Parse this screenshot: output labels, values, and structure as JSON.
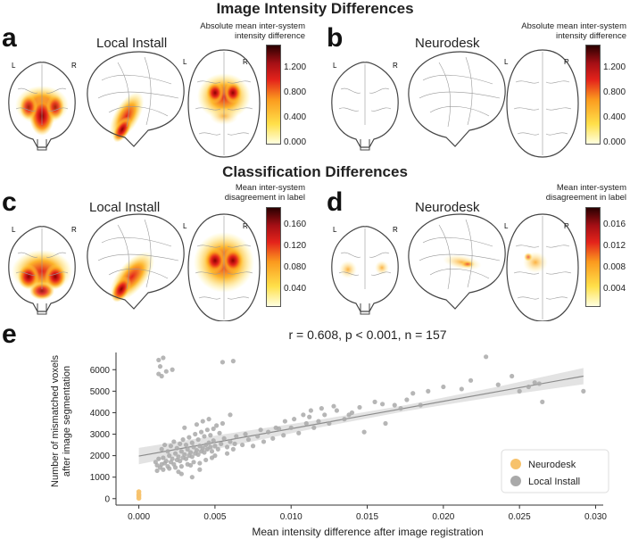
{
  "sections": {
    "top_title": "Image Intensity Differences",
    "mid_title": "Classification Differences"
  },
  "panels": {
    "a": {
      "label": "a",
      "title": "Local Install",
      "colorbar_title": "Absolute mean inter-system intensity difference",
      "ticks": [
        "1.200",
        "0.800",
        "0.400",
        "0.000"
      ]
    },
    "b": {
      "label": "b",
      "title": "Neurodesk",
      "colorbar_title": "Absolute mean inter-system intensity difference",
      "ticks": [
        "1.200",
        "0.800",
        "0.400",
        "0.000"
      ]
    },
    "c": {
      "label": "c",
      "title": "Local Install",
      "colorbar_title": "Mean inter-system disagreement in label",
      "ticks": [
        "0.160",
        "0.120",
        "0.080",
        "0.040"
      ]
    },
    "d": {
      "label": "d",
      "title": "Neurodesk",
      "colorbar_title": "Mean inter-system disagreement in label",
      "ticks": [
        "0.016",
        "0.012",
        "0.008",
        "0.004"
      ]
    },
    "e": {
      "label": "e"
    }
  },
  "hemi": {
    "left": "L",
    "right": "R"
  },
  "colors": {
    "neurodesk": "#f7c26b",
    "local": "#a9a9a9",
    "line": "#8c8c8c",
    "band": "#dcdcdc"
  },
  "chart_data": {
    "type": "scatter",
    "title": "r = 0.608, p < 0.001, n = 157",
    "xlabel": "Mean intensity difference after image registration",
    "ylabel_line1": "Number of mismatched voxels",
    "ylabel_line2": "after image segmentation",
    "xlim": [
      -0.0015,
      0.0305
    ],
    "ylim": [
      -300,
      6800
    ],
    "xticks": [
      0.0,
      0.005,
      0.01,
      0.015,
      0.02,
      0.025,
      0.03
    ],
    "xtick_labels": [
      "0.000",
      "0.005",
      "0.010",
      "0.015",
      "0.020",
      "0.025",
      "0.030"
    ],
    "yticks": [
      0,
      1000,
      2000,
      3000,
      4000,
      5000,
      6000
    ],
    "ytick_labels": [
      "0",
      "1000",
      "2000",
      "3000",
      "4000",
      "5000",
      "6000"
    ],
    "legend": {
      "position": "lower-right",
      "entries": [
        "Neurodesk",
        "Local Install"
      ]
    },
    "regression": {
      "x": [
        0.0,
        0.0292
      ],
      "y": [
        1980,
        5700
      ],
      "band": [
        380,
        300,
        180,
        140,
        220,
        380
      ]
    },
    "series": [
      {
        "name": "Neurodesk",
        "points": [
          [
            0.0,
            20
          ],
          [
            0.0,
            120
          ],
          [
            0.0,
            200
          ],
          [
            0.0,
            320
          ]
        ]
      },
      {
        "name": "Local Install",
        "points": [
          [
            0.0013,
            6450
          ],
          [
            0.0014,
            6150
          ],
          [
            0.0016,
            6550
          ],
          [
            0.0013,
            5800
          ],
          [
            0.0018,
            5920
          ],
          [
            0.0022,
            6000
          ],
          [
            0.0055,
            6350
          ],
          [
            0.0062,
            6400
          ],
          [
            0.0015,
            5700
          ],
          [
            0.0011,
            1700
          ],
          [
            0.0012,
            1550
          ],
          [
            0.0013,
            1850
          ],
          [
            0.0014,
            1450
          ],
          [
            0.0015,
            1600
          ],
          [
            0.0016,
            1900
          ],
          [
            0.0017,
            1650
          ],
          [
            0.0018,
            1750
          ],
          [
            0.0019,
            1500
          ],
          [
            0.002,
            2000
          ],
          [
            0.0021,
            1700
          ],
          [
            0.0022,
            1850
          ],
          [
            0.0023,
            1600
          ],
          [
            0.0024,
            2100
          ],
          [
            0.0025,
            1800
          ],
          [
            0.0026,
            1950
          ],
          [
            0.0027,
            1750
          ],
          [
            0.0028,
            2200
          ],
          [
            0.0029,
            1900
          ],
          [
            0.003,
            2050
          ],
          [
            0.0031,
            1850
          ],
          [
            0.0032,
            2300
          ],
          [
            0.0033,
            2000
          ],
          [
            0.0034,
            2150
          ],
          [
            0.0035,
            1950
          ],
          [
            0.0036,
            2400
          ],
          [
            0.0037,
            2100
          ],
          [
            0.0038,
            2250
          ],
          [
            0.0039,
            2050
          ],
          [
            0.004,
            2450
          ],
          [
            0.0041,
            2200
          ],
          [
            0.0042,
            2350
          ],
          [
            0.0043,
            2150
          ],
          [
            0.0044,
            2500
          ],
          [
            0.0045,
            2300
          ],
          [
            0.0046,
            2600
          ],
          [
            0.0047,
            2400
          ],
          [
            0.0048,
            2200
          ],
          [
            0.0049,
            2700
          ],
          [
            0.005,
            2450
          ],
          [
            0.0052,
            2300
          ],
          [
            0.0054,
            2550
          ],
          [
            0.0056,
            2800
          ],
          [
            0.0058,
            2400
          ],
          [
            0.006,
            2650
          ],
          [
            0.0062,
            2300
          ],
          [
            0.0064,
            2900
          ],
          [
            0.0015,
            2300
          ],
          [
            0.0017,
            2500
          ],
          [
            0.0019,
            2200
          ],
          [
            0.0021,
            2450
          ],
          [
            0.0023,
            2650
          ],
          [
            0.0025,
            2350
          ],
          [
            0.0027,
            2550
          ],
          [
            0.0029,
            2750
          ],
          [
            0.0031,
            2500
          ],
          [
            0.0033,
            2850
          ],
          [
            0.0035,
            2600
          ],
          [
            0.0037,
            3000
          ],
          [
            0.0039,
            2750
          ],
          [
            0.0041,
            3100
          ],
          [
            0.0043,
            2900
          ],
          [
            0.0045,
            3200
          ],
          [
            0.0047,
            2950
          ],
          [
            0.0049,
            3250
          ],
          [
            0.0051,
            3400
          ],
          [
            0.0053,
            3050
          ],
          [
            0.0012,
            1300
          ],
          [
            0.0016,
            1350
          ],
          [
            0.002,
            1400
          ],
          [
            0.0024,
            1450
          ],
          [
            0.0028,
            1500
          ],
          [
            0.0032,
            1600
          ],
          [
            0.0036,
            1700
          ],
          [
            0.004,
            1650
          ],
          [
            0.0044,
            1800
          ],
          [
            0.0048,
            1900
          ],
          [
            0.0026,
            1250
          ],
          [
            0.0034,
            1550
          ],
          [
            0.003,
            3300
          ],
          [
            0.0038,
            3450
          ],
          [
            0.0042,
            3600
          ],
          [
            0.0046,
            3700
          ],
          [
            0.0055,
            3500
          ],
          [
            0.006,
            3900
          ],
          [
            0.0035,
            1000
          ],
          [
            0.0028,
            1150
          ],
          [
            0.004,
            1350
          ],
          [
            0.005,
            2000
          ],
          [
            0.0058,
            2100
          ],
          [
            0.0063,
            2550
          ],
          [
            0.0068,
            2500
          ],
          [
            0.0072,
            2750
          ],
          [
            0.0075,
            2450
          ],
          [
            0.0078,
            2900
          ],
          [
            0.0082,
            2650
          ],
          [
            0.0085,
            3100
          ],
          [
            0.0088,
            2800
          ],
          [
            0.0092,
            3250
          ],
          [
            0.0095,
            2950
          ],
          [
            0.01,
            3300
          ],
          [
            0.0105,
            3050
          ],
          [
            0.011,
            3500
          ],
          [
            0.0112,
            3800
          ],
          [
            0.0115,
            3300
          ],
          [
            0.0118,
            3600
          ],
          [
            0.0122,
            3900
          ],
          [
            0.0125,
            3500
          ],
          [
            0.013,
            4100
          ],
          [
            0.0135,
            3700
          ],
          [
            0.014,
            4000
          ],
          [
            0.0145,
            4250
          ],
          [
            0.0148,
            3100
          ],
          [
            0.0155,
            4500
          ],
          [
            0.016,
            4400
          ],
          [
            0.0162,
            3500
          ],
          [
            0.0168,
            4350
          ],
          [
            0.0172,
            4200
          ],
          [
            0.0176,
            4600
          ],
          [
            0.018,
            4900
          ],
          [
            0.0185,
            4350
          ],
          [
            0.019,
            5000
          ],
          [
            0.02,
            5200
          ],
          [
            0.0212,
            5100
          ],
          [
            0.0218,
            5500
          ],
          [
            0.0228,
            6600
          ],
          [
            0.0236,
            5300
          ],
          [
            0.0245,
            5700
          ],
          [
            0.025,
            5000
          ],
          [
            0.0256,
            5200
          ],
          [
            0.026,
            5400
          ],
          [
            0.0263,
            5350
          ],
          [
            0.0265,
            4500
          ],
          [
            0.007,
            3000
          ],
          [
            0.008,
            3200
          ],
          [
            0.009,
            3300
          ],
          [
            0.0096,
            3600
          ],
          [
            0.0102,
            3700
          ],
          [
            0.0108,
            3900
          ],
          [
            0.0113,
            4100
          ],
          [
            0.012,
            4200
          ],
          [
            0.0128,
            4300
          ],
          [
            0.0138,
            3900
          ],
          [
            0.0292,
            5000
          ]
        ]
      }
    ]
  }
}
